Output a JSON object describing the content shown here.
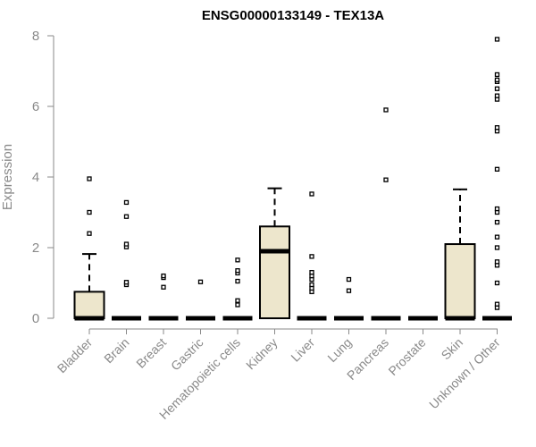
{
  "chart_data": {
    "type": "box",
    "title": "ENSG00000133149 - TEX13A",
    "xlabel": "",
    "ylabel": "Expression",
    "ylim": [
      0,
      8
    ],
    "yticks": [
      0,
      2,
      4,
      6,
      8
    ],
    "grid": false,
    "box_fill": "#ede6cc",
    "categories": [
      "Bladder",
      "Brain",
      "Breast",
      "Gastric",
      "Hematopoietic cells",
      "Kidney",
      "Liver",
      "Lung",
      "Pancreas",
      "Prostate",
      "Skin",
      "Unknown / Other"
    ],
    "boxes": [
      {
        "q1": 0,
        "median": 0,
        "q3": 0.75,
        "whisker_low": 0,
        "whisker_high": 1.82,
        "outliers": [
          2.4,
          3.0,
          3.95
        ]
      },
      {
        "q1": 0,
        "median": 0,
        "q3": 0,
        "whisker_low": 0,
        "whisker_high": 0,
        "outliers": [
          0.95,
          1.02,
          2.02,
          2.1,
          2.88,
          3.28
        ]
      },
      {
        "q1": 0,
        "median": 0,
        "q3": 0,
        "whisker_low": 0,
        "whisker_high": 0,
        "outliers": [
          0.88,
          1.15,
          1.2
        ]
      },
      {
        "q1": 0,
        "median": 0,
        "q3": 0,
        "whisker_low": 0,
        "whisker_high": 0,
        "outliers": [
          1.03
        ]
      },
      {
        "q1": 0,
        "median": 0,
        "q3": 0,
        "whisker_low": 0,
        "whisker_high": 0,
        "outliers": [
          0.38,
          0.5,
          1.05,
          1.28,
          1.35,
          1.65
        ]
      },
      {
        "q1": 0,
        "median": 1.9,
        "q3": 2.6,
        "whisker_low": 0,
        "whisker_high": 3.68,
        "outliers": []
      },
      {
        "q1": 0,
        "median": 0,
        "q3": 0,
        "whisker_low": 0,
        "whisker_high": 0,
        "outliers": [
          0.75,
          0.85,
          0.95,
          1.1,
          1.2,
          1.3,
          1.75,
          3.52
        ]
      },
      {
        "q1": 0,
        "median": 0,
        "q3": 0,
        "whisker_low": 0,
        "whisker_high": 0,
        "outliers": [
          0.78,
          1.1
        ]
      },
      {
        "q1": 0,
        "median": 0,
        "q3": 0,
        "whisker_low": 0,
        "whisker_high": 0,
        "outliers": [
          3.92,
          5.9
        ]
      },
      {
        "q1": 0,
        "median": 0,
        "q3": 0,
        "whisker_low": 0,
        "whisker_high": 0,
        "outliers": []
      },
      {
        "q1": 0,
        "median": 0,
        "q3": 2.1,
        "whisker_low": 0,
        "whisker_high": 3.65,
        "outliers": []
      },
      {
        "q1": 0,
        "median": 0,
        "q3": 0,
        "whisker_low": 0,
        "whisker_high": 0,
        "outliers": [
          0.3,
          0.4,
          1.0,
          1.5,
          1.6,
          2.0,
          2.3,
          2.72,
          3.0,
          3.1,
          4.22,
          5.3,
          5.4,
          6.2,
          6.3,
          6.5,
          6.7,
          6.75,
          6.9,
          7.9
        ]
      }
    ]
  }
}
